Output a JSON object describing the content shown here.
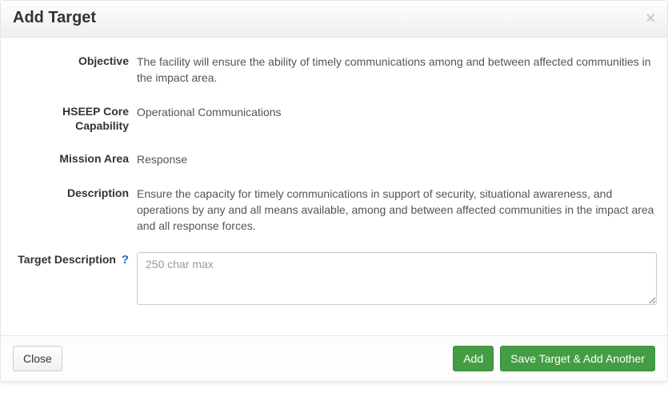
{
  "header": {
    "title": "Add Target",
    "close_glyph": "×"
  },
  "fields": {
    "objective": {
      "label": "Objective",
      "value": "The facility will ensure the ability of timely communications among and between affected communities in the impact area."
    },
    "hseep": {
      "label": "HSEEP Core Capability",
      "value": "Operational Communications"
    },
    "mission_area": {
      "label": "Mission Area",
      "value": "Response"
    },
    "description": {
      "label": "Description",
      "value": "Ensure the capacity for timely communications in support of security, situational awareness, and operations by any and all means available, among and between affected communities in the impact area and all response forces."
    },
    "target_description": {
      "label": "Target Description",
      "help_glyph": "?",
      "placeholder": "250 char max",
      "value": ""
    }
  },
  "footer": {
    "close_label": "Close",
    "add_label": "Add",
    "save_another_label": "Save Target & Add Another"
  },
  "style": {
    "accent_success": "#449d44",
    "help_icon_color": "#2a6db5",
    "text_color": "#555",
    "heading_color": "#333"
  }
}
